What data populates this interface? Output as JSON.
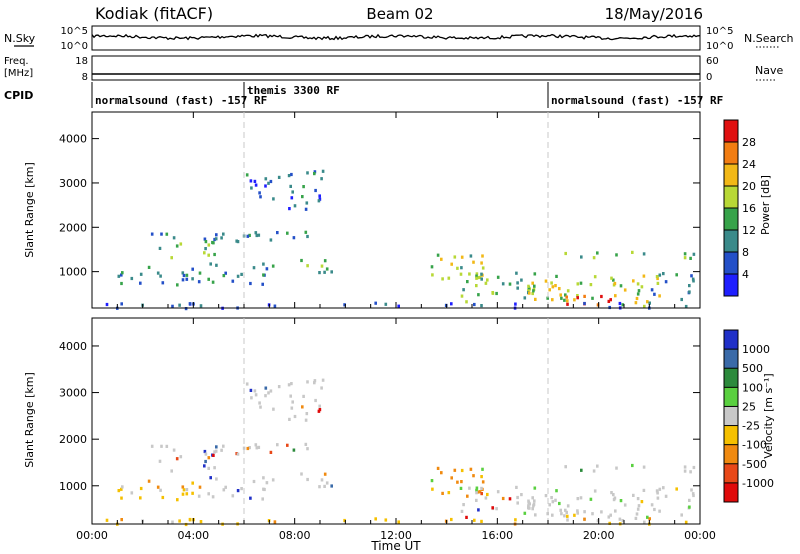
{
  "header": {
    "station": "Kodiak (fitACF)",
    "beam": "Beam 02",
    "date": "18/May/2016"
  },
  "top_panels": {
    "nsky": {
      "left_label": "N.Sky",
      "left_ticks": [
        "10^5",
        "10^0"
      ],
      "right_ticks": [
        "10^5",
        "10^0"
      ],
      "right_label": "N.Search"
    },
    "freq": {
      "left_label_1": "Freq.",
      "left_label_2": "[MHz]",
      "left_ticks": [
        "18",
        "8"
      ],
      "right_ticks": [
        "60",
        "0"
      ],
      "right_label": "Nave"
    },
    "cpid": {
      "label": "CPID",
      "segments": [
        {
          "label": "normalsound (fast) -157 RF",
          "start_hour": 0,
          "end_hour": 6
        },
        {
          "label": "themis 3300 RF",
          "start_hour": 6,
          "end_hour": 18
        },
        {
          "label": "normalsound (fast) -157 RF",
          "start_hour": 18,
          "end_hour": 24
        }
      ]
    }
  },
  "chart_data": [
    {
      "type": "heatmap",
      "name": "power",
      "ylabel": "Slant Range [km]",
      "xlabel": "",
      "xlim": [
        0,
        24
      ],
      "ylim": [
        180,
        4600
      ],
      "yticks": [
        1000,
        2000,
        3000,
        4000
      ],
      "colorbar": {
        "label": "Power [dB]",
        "ticks": [
          "4",
          "8",
          "12",
          "16",
          "20",
          "24",
          "28"
        ],
        "range": [
          0,
          30
        ],
        "colors": [
          "#1f1fff",
          "#2450c8",
          "#3a8a8a",
          "#37a34a",
          "#b8d836",
          "#f2b817",
          "#f27d12",
          "#e01010"
        ]
      },
      "echo_regions": [
        {
          "t_start": 1.8,
          "t_end": 6.0,
          "r_start": 1550,
          "r_end": 1900,
          "typical": 10
        },
        {
          "t_start": 3.0,
          "t_end": 4.8,
          "r_start": 1350,
          "r_end": 1700,
          "typical": 14
        },
        {
          "t_start": 5.0,
          "t_end": 9.6,
          "r_start": 1700,
          "r_end": 1950,
          "typical": 9
        },
        {
          "t_start": 6.0,
          "t_end": 9.3,
          "r_start": 2700,
          "r_end": 3300,
          "typical": 7
        },
        {
          "t_start": 7.0,
          "t_end": 9.0,
          "r_start": 2300,
          "r_end": 2800,
          "typical": 6
        },
        {
          "t_start": 1.0,
          "t_end": 4.5,
          "r_start": 700,
          "r_end": 1150,
          "typical": 9
        },
        {
          "t_start": 4.5,
          "t_end": 7.2,
          "r_start": 750,
          "r_end": 1250,
          "typical": 8
        },
        {
          "t_start": 8.2,
          "t_end": 9.6,
          "r_start": 1000,
          "r_end": 1300,
          "typical": 12
        },
        {
          "t_start": 13.3,
          "t_end": 15.6,
          "r_start": 800,
          "r_end": 1500,
          "typical": 16
        },
        {
          "t_start": 14.5,
          "t_end": 17.5,
          "r_start": 350,
          "r_end": 1000,
          "typical": 14
        },
        {
          "t_start": 17.0,
          "t_end": 22.5,
          "r_start": 250,
          "r_end": 1000,
          "typical": 17
        },
        {
          "t_start": 18.6,
          "t_end": 21.0,
          "r_start": 250,
          "r_end": 600,
          "typical": 24
        },
        {
          "t_start": 22.0,
          "t_end": 24.0,
          "r_start": 400,
          "r_end": 1000,
          "typical": 9
        },
        {
          "t_start": 18.2,
          "t_end": 24.0,
          "r_start": 1300,
          "r_end": 1480,
          "typical": 13
        },
        {
          "t_start": 0.0,
          "t_end": 24.0,
          "r_start": 200,
          "r_end": 330,
          "typical": 5
        }
      ]
    },
    {
      "type": "heatmap",
      "name": "velocity",
      "ylabel": "Slant Range [km]",
      "xlabel": "Time UT",
      "xlim": [
        0,
        24
      ],
      "ylim": [
        180,
        4600
      ],
      "xticks": [
        "00:00",
        "04:00",
        "08:00",
        "12:00",
        "16:00",
        "20:00",
        "00:00"
      ],
      "yticks": [
        1000,
        2000,
        3000,
        4000
      ],
      "colorbar": {
        "label": "Velocity [m s⁻¹]",
        "ticks": [
          "1000",
          "500",
          "100",
          "25",
          "-25",
          "-100",
          "-500",
          "-1000"
        ],
        "colors": [
          "#2030c8",
          "#3a6aa8",
          "#2c8a3c",
          "#5ad040",
          "#c8c8c8",
          "#f5c000",
          "#f08a10",
          "#e84818",
          "#e00a0a"
        ]
      }
    }
  ]
}
